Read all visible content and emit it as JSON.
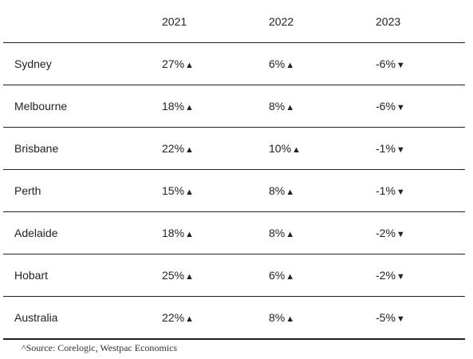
{
  "table": {
    "columns": [
      "",
      "2021",
      "2022",
      "2023"
    ],
    "rows": [
      {
        "city": "Sydney",
        "values": [
          "27%",
          "6%",
          "-6%"
        ],
        "arrows": [
          "▲",
          "▲",
          "▼"
        ]
      },
      {
        "city": "Melbourne",
        "values": [
          "18%",
          "8%",
          "-6%"
        ],
        "arrows": [
          "▲",
          "▲",
          "▼"
        ]
      },
      {
        "city": "Brisbane",
        "values": [
          "22%",
          "10%",
          "-1%"
        ],
        "arrows": [
          "▲",
          "▲",
          "▼"
        ]
      },
      {
        "city": "Perth",
        "values": [
          "15%",
          "8%",
          "-1%"
        ],
        "arrows": [
          "▲",
          "▲",
          "▼"
        ]
      },
      {
        "city": "Adelaide",
        "values": [
          "18%",
          "8%",
          "-2%"
        ],
        "arrows": [
          "▲",
          "▲",
          "▼"
        ]
      },
      {
        "city": "Hobart",
        "values": [
          "25%",
          "6%",
          "-2%"
        ],
        "arrows": [
          "▲",
          "▲",
          "▼"
        ]
      },
      {
        "city": "Australia",
        "values": [
          "22%",
          "8%",
          "-5%"
        ],
        "arrows": [
          "▲",
          "▲",
          "▼"
        ]
      }
    ]
  },
  "source": "^Source: Corelogic, Westpac Economics"
}
